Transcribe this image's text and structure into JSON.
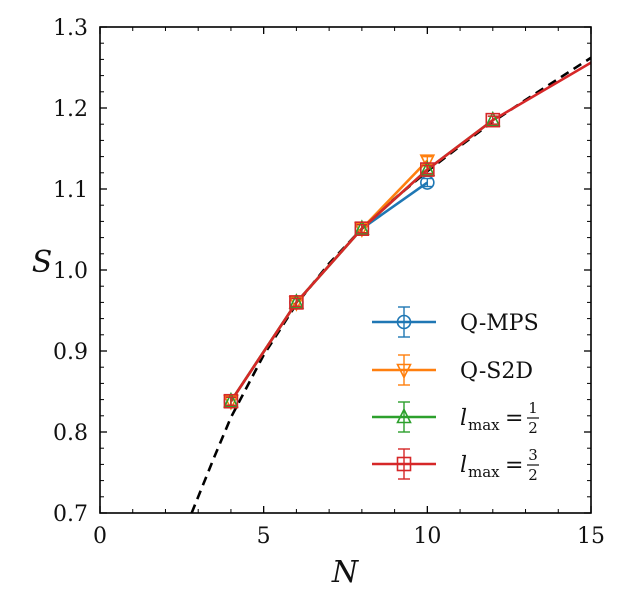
{
  "chart_data": {
    "type": "line",
    "xlabel": "N",
    "ylabel": "S",
    "xlim": [
      0,
      15
    ],
    "ylim": [
      0.7,
      1.3
    ],
    "xticks": [
      0,
      5,
      10,
      15
    ],
    "xtick_labels": [
      "0",
      "5",
      "10",
      "15"
    ],
    "yticks": [
      0.7,
      0.8,
      0.9,
      1.0,
      1.1,
      1.2,
      1.3
    ],
    "ytick_labels": [
      "0.7",
      "0.8",
      "0.9",
      "1.0",
      "1.1",
      "1.2",
      "1.3"
    ],
    "grid": false,
    "legend_position": "bottom-right",
    "fit_curve": {
      "style": "dashed",
      "color": "#000000",
      "x": [
        2.8,
        3.0,
        3.5,
        4.0,
        5.0,
        6.0,
        7.0,
        8.0,
        9.0,
        10.0,
        11.0,
        12.0,
        13.0,
        14.0,
        15.0
      ],
      "y": [
        0.7,
        0.72,
        0.77,
        0.818,
        0.895,
        0.958,
        1.008,
        1.051,
        1.088,
        1.122,
        1.153,
        1.183,
        1.21,
        1.236,
        1.262
      ]
    },
    "series": [
      {
        "name": "Q-MPS",
        "color": "#1f77b4",
        "marker": "circle",
        "x": [
          4,
          6,
          8,
          10
        ],
        "y": [
          0.838,
          0.96,
          1.051,
          1.108
        ]
      },
      {
        "name": "Q-S2D",
        "color": "#ff7f0e",
        "marker": "triangle-down",
        "x": [
          4,
          6,
          8,
          10
        ],
        "y": [
          0.838,
          0.96,
          1.051,
          1.135
        ]
      },
      {
        "name": "l_max = 1/2",
        "color": "#2ca02c",
        "marker": "triangle-up",
        "x": [
          4,
          6,
          8,
          10,
          12
        ],
        "y": [
          0.838,
          0.96,
          1.051,
          1.124,
          1.185
        ]
      },
      {
        "name": "l_max = 3/2",
        "color": "#d62728",
        "marker": "square",
        "x": [
          4,
          6,
          8,
          10,
          12,
          15
        ],
        "y": [
          0.838,
          0.96,
          1.051,
          1.124,
          1.185,
          1.256
        ]
      }
    ],
    "legend": {
      "q_mps": "Q-MPS",
      "q_s2d": "Q-S2D",
      "l_symbol": "l",
      "l_sub": "max",
      "eq": "=",
      "frac1_num": "1",
      "frac1_den": "2",
      "frac2_num": "3",
      "frac2_den": "2"
    }
  }
}
